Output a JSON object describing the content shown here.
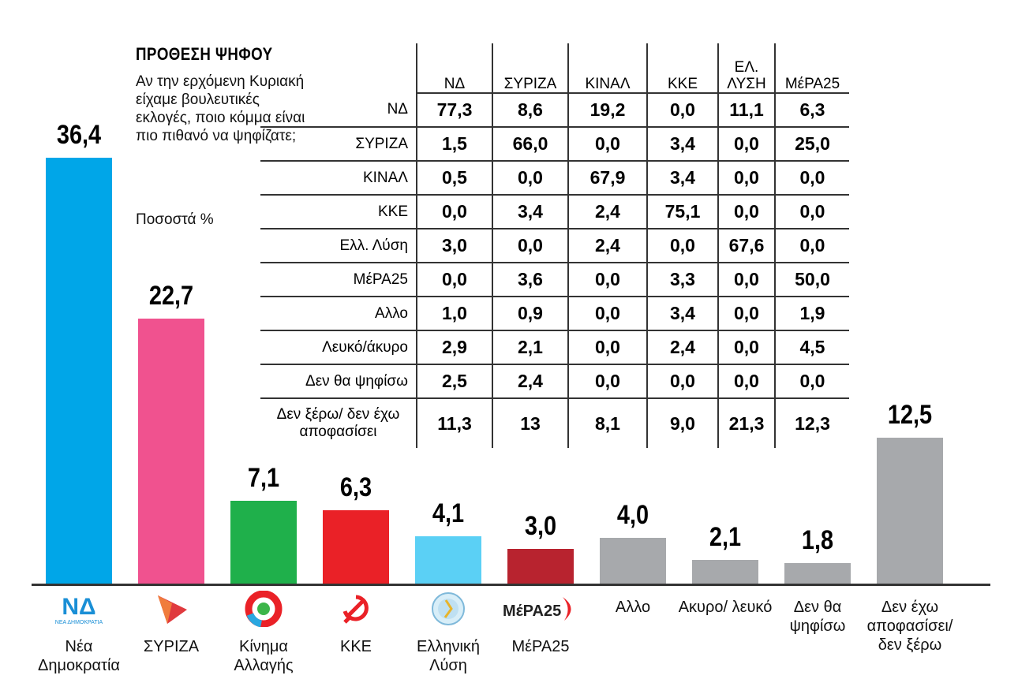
{
  "chart_data": {
    "type": "bar",
    "title": "ΠΡΟΘΕΣΗ ΨΗΦΟΥ",
    "subtitle": "Αν την ερχόμενη Κυριακή είχαμε βουλευτικές εκλογές, ποιο κόμμα είναι πιο πιθανό να ψηφίζατε;",
    "unit_label": "Ποσοστά %",
    "ylim": [
      0,
      40
    ],
    "categories": [
      "Νέα Δημοκρατία",
      "ΣΥΡΙΖΑ",
      "Κίνημα Αλλαγής",
      "ΚΚΕ",
      "Ελληνική Λύση",
      "ΜέΡΑ25",
      "Αλλο",
      "Ακυρο/ λευκό",
      "Δεν θα ψηφίσω",
      "Δεν έχω αποφασίσει/ δεν ξέρω"
    ],
    "values": [
      36.4,
      22.7,
      7.1,
      6.3,
      4.1,
      3.0,
      4.0,
      2.1,
      1.8,
      12.5
    ],
    "value_labels": [
      "36,4",
      "22,7",
      "7,1",
      "6,3",
      "4,1",
      "3,0",
      "4,0",
      "2,1",
      "1,8",
      "12,5"
    ],
    "colors": [
      "#00a6e8",
      "#f0528f",
      "#1fb04b",
      "#ea2127",
      "#5bd0f5",
      "#b8232f",
      "#a7a9ac",
      "#a7a9ac",
      "#a7a9ac",
      "#a7a9ac"
    ],
    "logos": [
      "nd-logo",
      "syriza-logo",
      "kinal-logo",
      "kke-logo",
      "elliniki-lysi-logo",
      "mera25-logo",
      "",
      "",
      "",
      ""
    ],
    "logo_text": {
      "nd": "ΝΔ",
      "nd_sub": "ΝΕΑ ΔΗΜΟΚΡΑΤΙΑ",
      "mera25": "ΜέΡΑ25"
    },
    "crosstab": {
      "columns": [
        "ΝΔ",
        "ΣΥΡΙΖΑ",
        "ΚΙΝΑΛ",
        "ΚΚΕ",
        "ΕΛ. ΛΥΣΗ",
        "ΜέΡΑ25"
      ],
      "rows": [
        {
          "label": "ΝΔ",
          "values": [
            "77,3",
            "8,6",
            "19,2",
            "0,0",
            "11,1",
            "6,3"
          ]
        },
        {
          "label": "ΣΥΡΙΖΑ",
          "values": [
            "1,5",
            "66,0",
            "0,0",
            "3,4",
            "0,0",
            "25,0"
          ]
        },
        {
          "label": "ΚΙΝΑΛ",
          "values": [
            "0,5",
            "0,0",
            "67,9",
            "3,4",
            "0,0",
            "0,0"
          ]
        },
        {
          "label": "ΚΚΕ",
          "values": [
            "0,0",
            "3,4",
            "2,4",
            "75,1",
            "0,0",
            "0,0"
          ]
        },
        {
          "label": "Ελλ. Λύση",
          "values": [
            "3,0",
            "0,0",
            "2,4",
            "0,0",
            "67,6",
            "0,0"
          ]
        },
        {
          "label": "ΜέΡΑ25",
          "values": [
            "0,0",
            "3,6",
            "0,0",
            "3,3",
            "0,0",
            "50,0"
          ]
        },
        {
          "label": "Αλλο",
          "values": [
            "1,0",
            "0,9",
            "0,0",
            "3,4",
            "0,0",
            "1,9"
          ]
        },
        {
          "label": "Λευκό/άκυρο",
          "values": [
            "2,9",
            "2,1",
            "0,0",
            "2,4",
            "0,0",
            "4,5"
          ]
        },
        {
          "label": "Δεν θα ψηφίσω",
          "values": [
            "2,5",
            "2,4",
            "0,0",
            "0,0",
            "0,0",
            "0,0"
          ]
        },
        {
          "label": "Δεν ξέρω/ δεν έχω αποφασίσει",
          "values": [
            "11,3",
            "13",
            "8,1",
            "9,0",
            "21,3",
            "12,3"
          ]
        }
      ]
    }
  }
}
